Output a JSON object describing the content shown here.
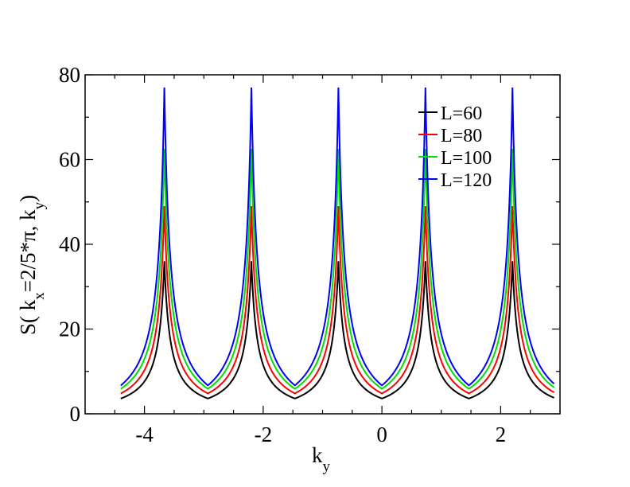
{
  "chart_data": {
    "type": "line",
    "ylabel_parts": {
      "main": "S( k",
      "sub1": "x",
      "mid": "=2/5*π, k",
      "sub2": "y",
      "end": ")"
    },
    "xlabel_parts": {
      "main": "k",
      "sub": "y"
    },
    "xlim": [
      -5.0,
      3.0
    ],
    "ylim": [
      0,
      80
    ],
    "xticks": [
      -4,
      -2,
      0,
      2
    ],
    "xtick_labels": [
      "-4",
      "-2",
      "0",
      "2"
    ],
    "yticks": [
      0,
      20,
      40,
      60,
      80
    ],
    "ytick_labels": [
      "0",
      "20",
      "40",
      "60",
      "80"
    ],
    "x_range": [
      -4.4,
      2.9
    ],
    "peak_positions": [
      -3.665,
      -2.199,
      -0.733,
      0.733,
      2.199
    ],
    "legend_position": "top-right",
    "series": [
      {
        "name": "L=60",
        "color": "#000000",
        "peak": 36,
        "min": 3.6,
        "edge": 3.6
      },
      {
        "name": "L=80",
        "color": "#ff0000",
        "peak": 49,
        "min": 4.8,
        "edge": 4.8
      },
      {
        "name": "L=100",
        "color": "#00dd00",
        "peak": 62.5,
        "min": 5.9,
        "edge": 5.9
      },
      {
        "name": "L=120",
        "color": "#0000ff",
        "peak": 77,
        "min": 6.7,
        "edge": 6.7
      }
    ]
  }
}
